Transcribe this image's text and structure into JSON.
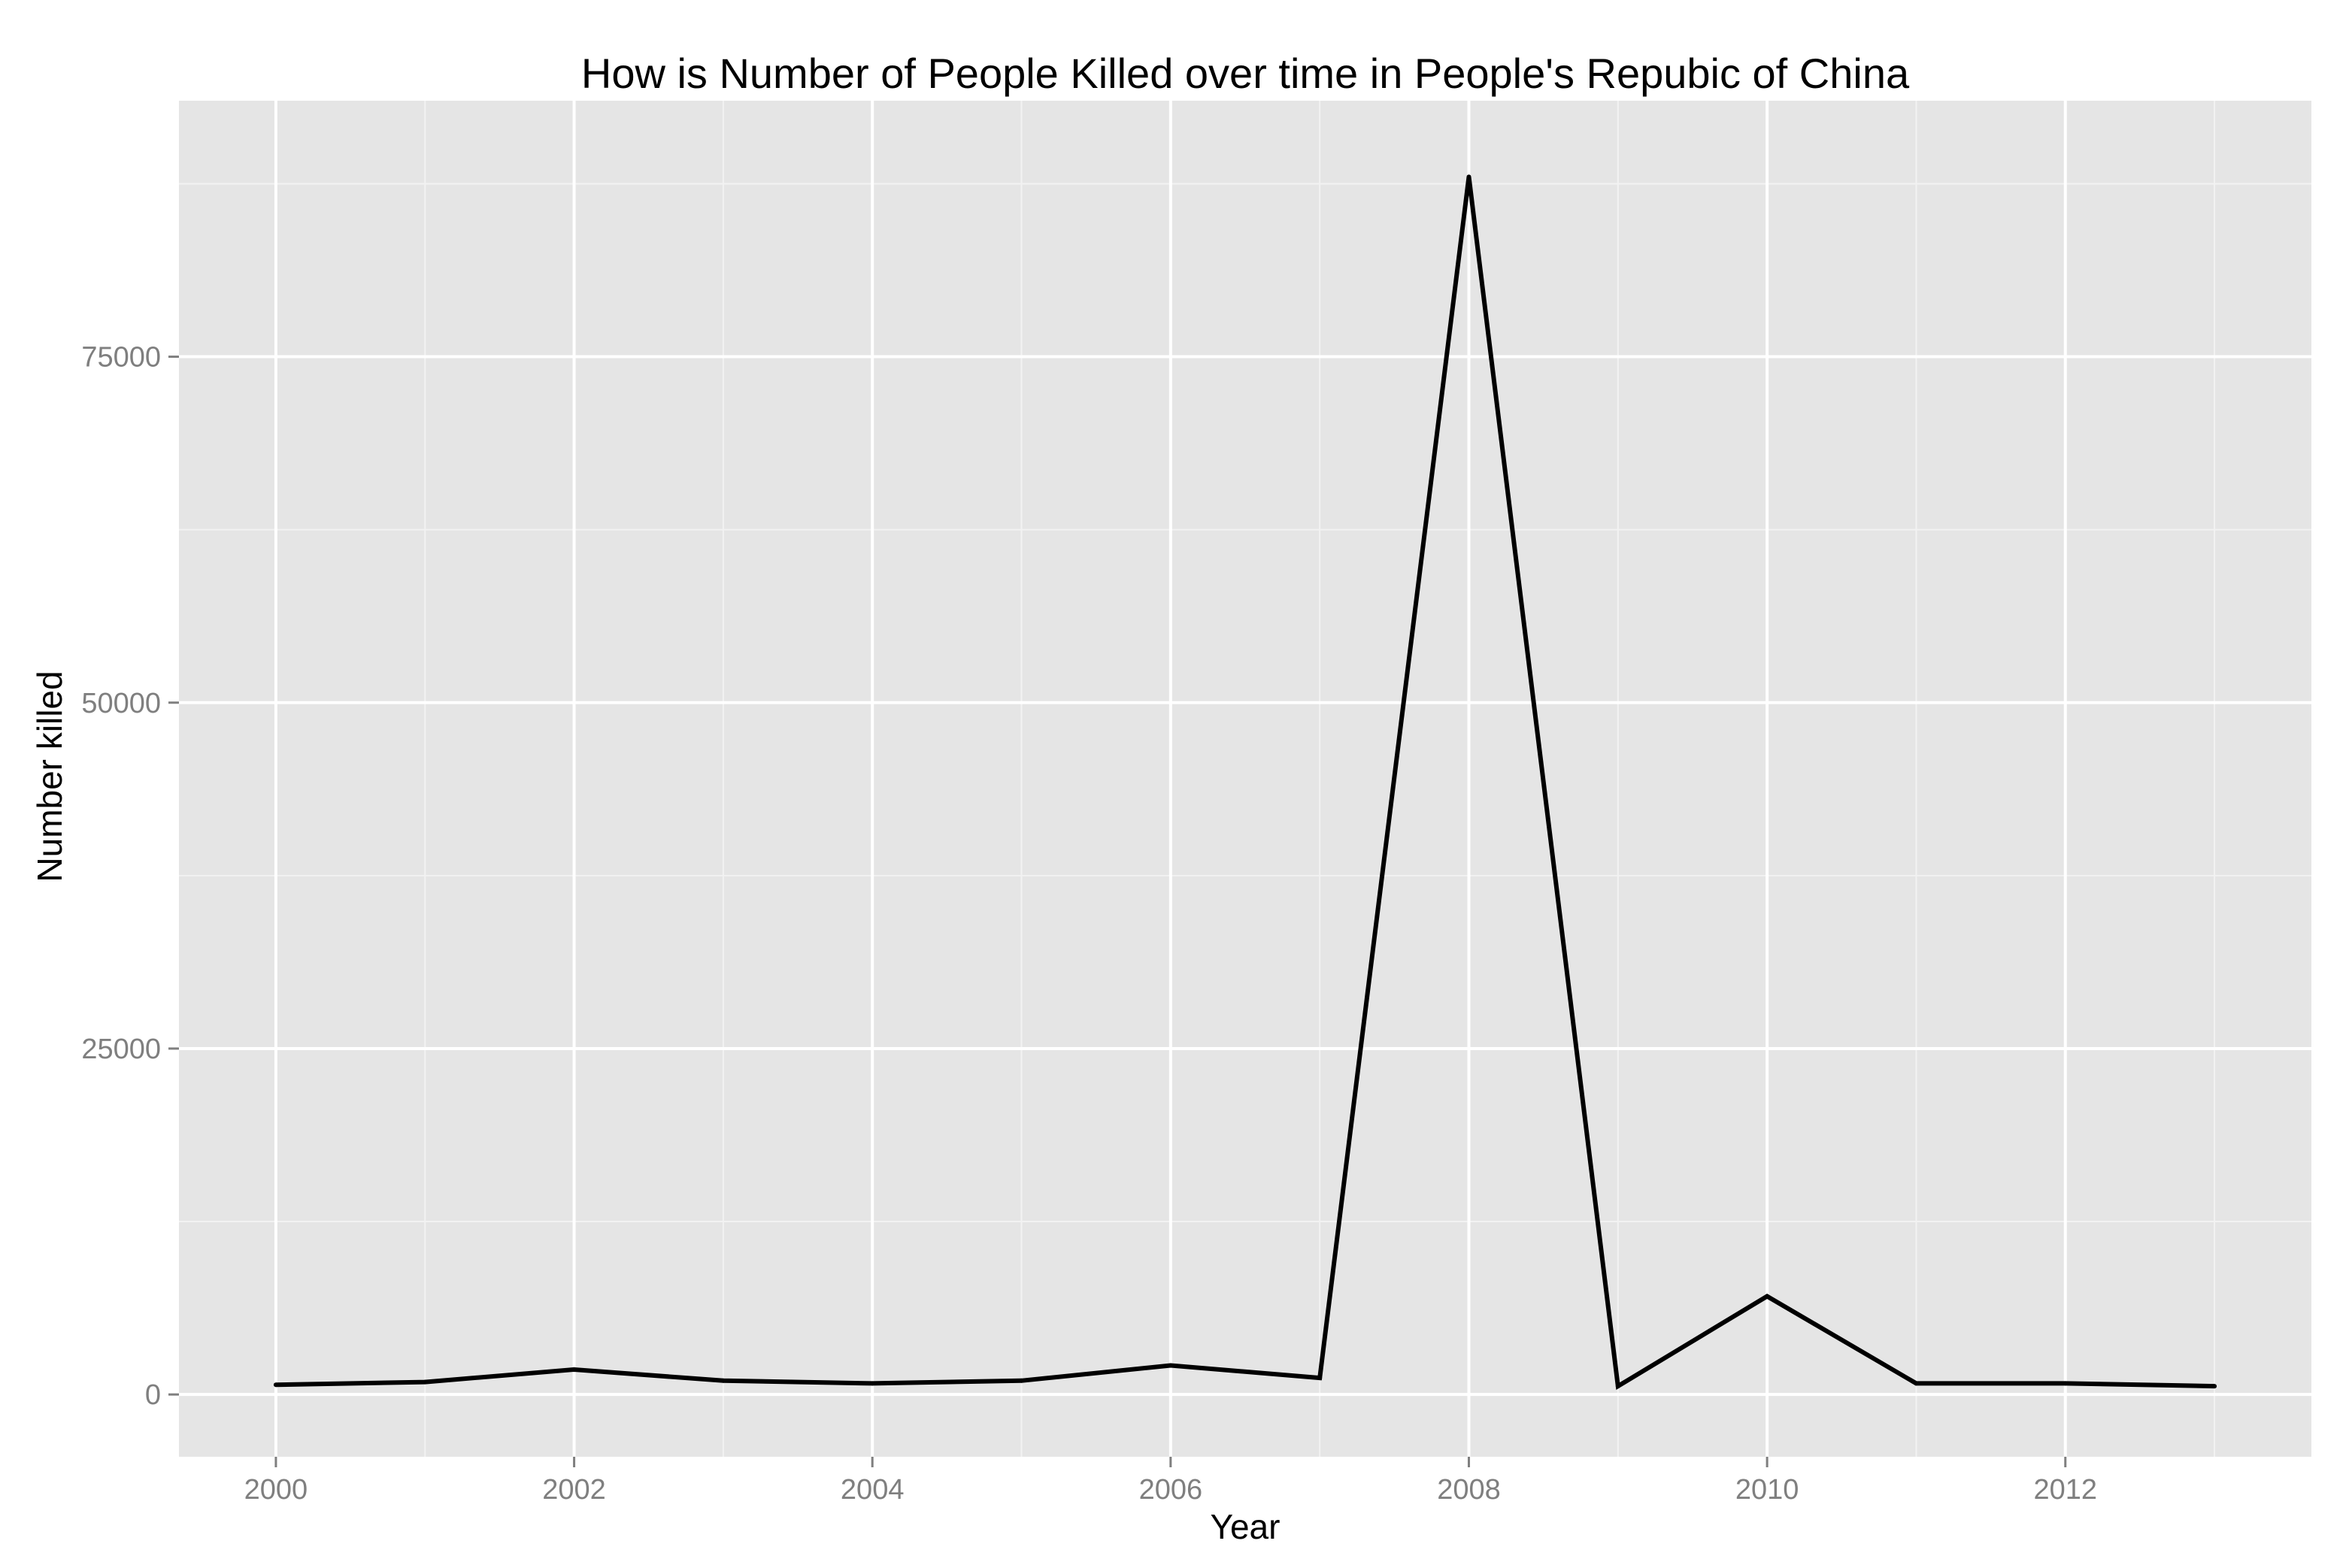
{
  "chart_data": {
    "type": "line",
    "title": "How is Number of People Killed over time in People's Repubic of China",
    "xlabel": "Year",
    "ylabel": "Number killed",
    "xlim": [
      1999.35,
      2013.65
    ],
    "ylim": [
      -4500,
      93500
    ],
    "x_ticks": [
      2000,
      2002,
      2004,
      2006,
      2008,
      2010,
      2012
    ],
    "x_tick_labels": [
      "2000",
      "2002",
      "2004",
      "2006",
      "2008",
      "2010",
      "2012"
    ],
    "x_minor_ticks": [
      2001,
      2003,
      2005,
      2007,
      2009,
      2011,
      2013
    ],
    "y_ticks": [
      0,
      25000,
      50000,
      75000
    ],
    "y_tick_labels": [
      "0",
      "25000",
      "50000",
      "75000"
    ],
    "y_minor_ticks": [
      12500,
      37500,
      62500,
      87500
    ],
    "grid": true,
    "legend": "none",
    "colors": {
      "panel_background": "#e5e5e5",
      "grid_major": "#ffffff",
      "grid_minor": "#f2f2f2",
      "line": "#000000",
      "tick_label": "#7f7f7f"
    },
    "series": [
      {
        "x": [
          2000,
          2001,
          2002,
          2003,
          2004,
          2005,
          2006,
          2007,
          2008,
          2009,
          2010,
          2011,
          2012,
          2013
        ],
        "values": [
          700,
          900,
          1800,
          1000,
          800,
          1000,
          2100,
          1200,
          88000,
          600,
          7100,
          800,
          800,
          600
        ]
      }
    ]
  }
}
